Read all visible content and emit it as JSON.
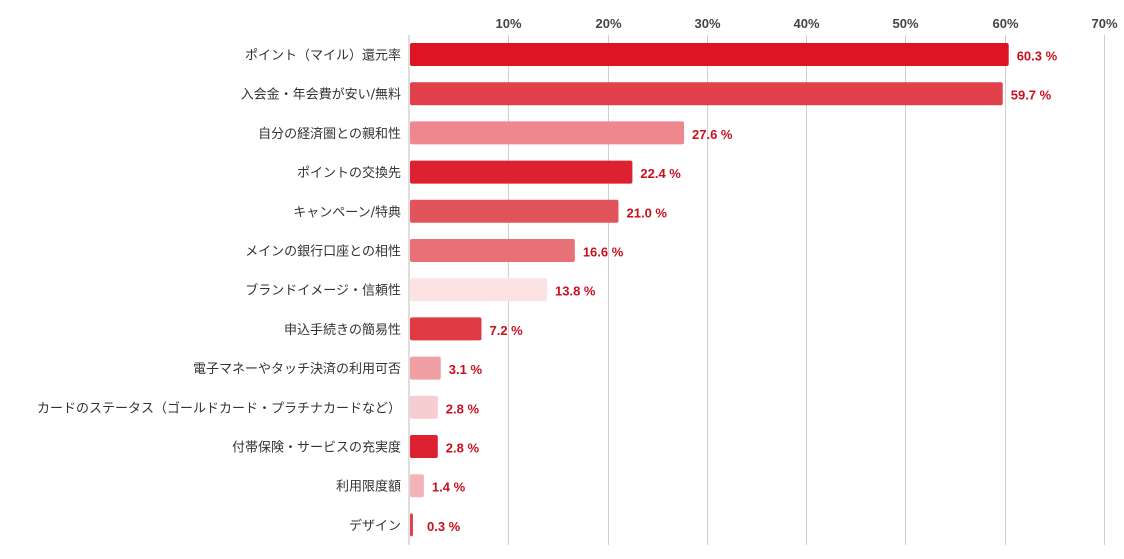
{
  "chart_data": {
    "type": "bar",
    "orientation": "horizontal",
    "categories": [
      "ポイント（マイル）還元率",
      "入会金・年会費が安い/無料",
      "自分の経済圏との親和性",
      "ポイントの交換先",
      "キャンペーン/特典",
      "メインの銀行口座との相性",
      "ブランドイメージ・信頼性",
      "申込手続きの簡易性",
      "電子マネーやタッチ決済の利用可否",
      "カードのステータス（ゴールドカード・プラチナカードなど）",
      "付帯保険・サービスの充実度",
      "利用限度額",
      "デザイン"
    ],
    "values": [
      60.3,
      59.7,
      27.6,
      22.4,
      21.0,
      16.6,
      13.8,
      7.2,
      3.1,
      2.8,
      2.8,
      1.4,
      0.3
    ],
    "data_labels": [
      "60.3 %",
      "59.7 %",
      "27.6 %",
      "22.4 %",
      "21.0 %",
      "16.6 %",
      "13.8 %",
      "7.2 %",
      "3.1 %",
      "2.8 %",
      "2.8 %",
      "1.4 %",
      "0.3 %"
    ],
    "bar_colors": [
      "#dc1423",
      "#e0414b",
      "#ef888e",
      "#dc2230",
      "#e2545b",
      "#e87077",
      "#fbe3e4",
      "#df3a44",
      "#f0a0a5",
      "#f6cdd0",
      "#dc2230",
      "#f2b4b8",
      "#e0414b"
    ],
    "x_ticks": [
      10,
      20,
      30,
      40,
      50,
      60,
      70
    ],
    "x_tick_labels": [
      "10%",
      "20%",
      "30%",
      "40%",
      "50%",
      "60%",
      "70%"
    ],
    "xlim": [
      0,
      70
    ],
    "grid": true,
    "legend": "none",
    "label_color": "#c8101e",
    "title": "",
    "xlabel": "",
    "ylabel": ""
  }
}
